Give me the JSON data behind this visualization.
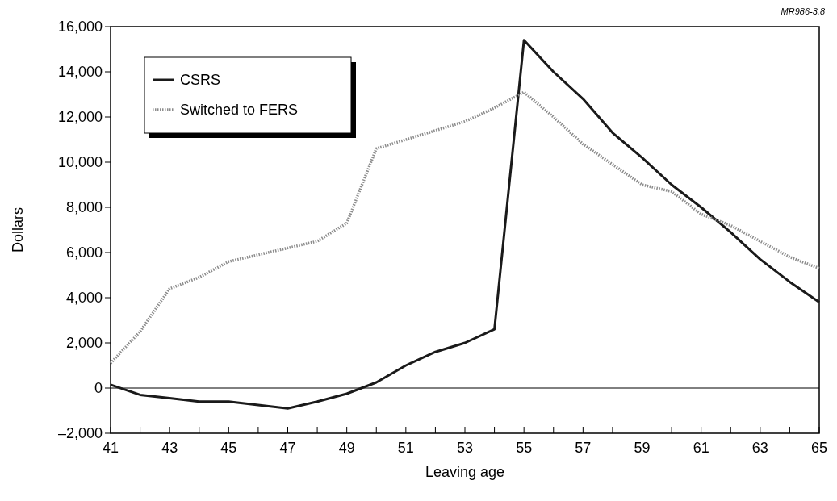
{
  "chart_data": {
    "type": "line",
    "xlabel": "Leaving age",
    "ylabel": "Dollars",
    "annotations": [
      "MR986-3.8"
    ],
    "x": [
      41,
      42,
      43,
      44,
      45,
      46,
      47,
      48,
      49,
      50,
      51,
      52,
      53,
      54,
      55,
      56,
      57,
      58,
      59,
      60,
      61,
      62,
      63,
      64,
      65
    ],
    "series": [
      {
        "name": "CSRS",
        "color": "#1a1a1a",
        "line_style": "solid",
        "values": [
          150,
          -300,
          -450,
          -600,
          -600,
          -750,
          -900,
          -600,
          -250,
          250,
          1000,
          1600,
          2000,
          2600,
          15400,
          14000,
          12800,
          11300,
          10200,
          9000,
          8000,
          6900,
          5700,
          4700,
          3800
        ]
      },
      {
        "name": "Switched to FERS",
        "color": "#8c8c8c",
        "line_style": "dotted",
        "values": [
          1100,
          2500,
          4400,
          4900,
          5600,
          5900,
          6200,
          6500,
          7300,
          10600,
          11000,
          11400,
          11800,
          12400,
          13100,
          12000,
          10800,
          9900,
          9000,
          8700,
          7700,
          7200,
          6500,
          5800,
          5300
        ]
      }
    ],
    "xlim": [
      41,
      65
    ],
    "xticks": [
      41,
      {
        "value": 42,
        "label": null
      },
      43,
      {
        "value": 44,
        "label": null
      },
      45,
      {
        "value": 46,
        "label": null
      },
      47,
      {
        "value": 48,
        "label": null
      },
      49,
      {
        "value": 50,
        "label": null
      },
      51,
      {
        "value": 52,
        "label": null
      },
      53,
      {
        "value": 54,
        "label": null
      },
      55,
      {
        "value": 56,
        "label": null
      },
      57,
      {
        "value": 58,
        "label": null
      },
      59,
      {
        "value": 60,
        "label": null
      },
      61,
      {
        "value": 62,
        "label": null
      },
      63,
      {
        "value": 64,
        "label": null
      },
      65
    ],
    "ylim": [
      -2000,
      16000
    ],
    "yticks": [
      {
        "value": -2000,
        "label": "–2,000"
      },
      0,
      {
        "value": 2000,
        "label": "2,000"
      },
      {
        "value": 4000,
        "label": "4,000"
      },
      {
        "value": 6000,
        "label": "6,000"
      },
      {
        "value": 8000,
        "label": "8,000"
      },
      {
        "value": 10000,
        "label": "10,000"
      },
      {
        "value": 12000,
        "label": "12,000"
      },
      {
        "value": 14000,
        "label": "14,000"
      },
      {
        "value": 16000,
        "label": "16,000"
      }
    ],
    "ref_lines": [
      {
        "axis": "y",
        "value": 0,
        "color": "#000000"
      }
    ],
    "grid": false,
    "legend": "top left",
    "marker": "none"
  }
}
